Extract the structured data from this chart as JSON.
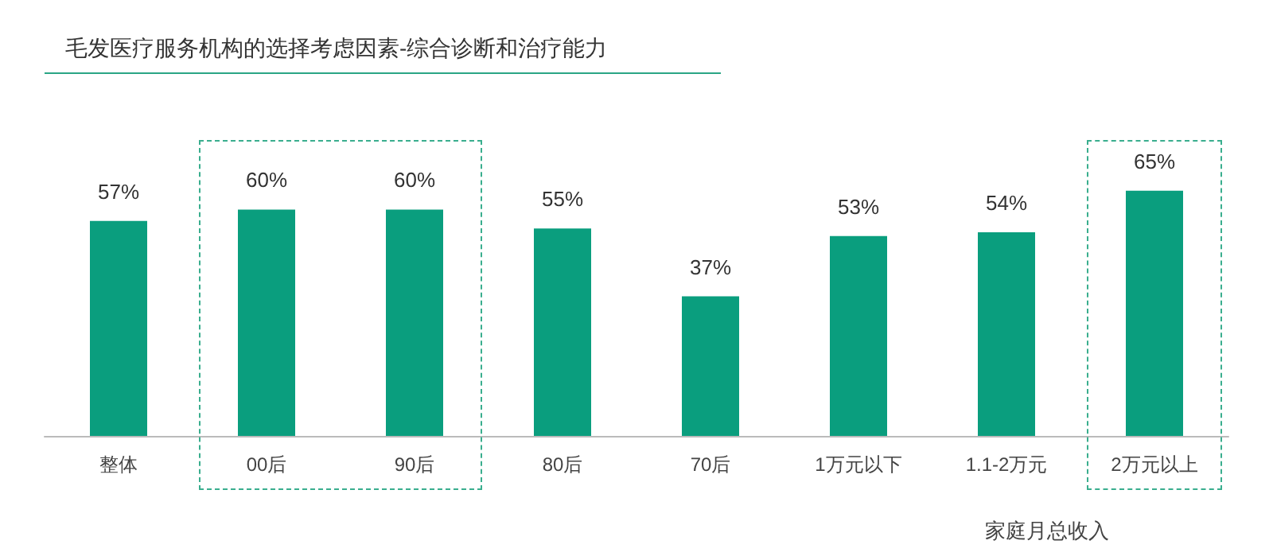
{
  "chart_data": {
    "type": "bar",
    "title": "毛发医疗服务机构的选择考虑因素-综合诊断和治疗能力",
    "categories": [
      "整体",
      "00后",
      "90后",
      "80后",
      "70后",
      "1万元以下",
      "1.1-2万元",
      "2万元以上"
    ],
    "values": [
      57,
      60,
      60,
      55,
      37,
      53,
      54,
      65
    ],
    "value_labels": [
      "57%",
      "60%",
      "60%",
      "55%",
      "37%",
      "53%",
      "54%",
      "65%"
    ],
    "color": "#0a9e7e",
    "annotations": [
      "家庭月总收入"
    ]
  }
}
